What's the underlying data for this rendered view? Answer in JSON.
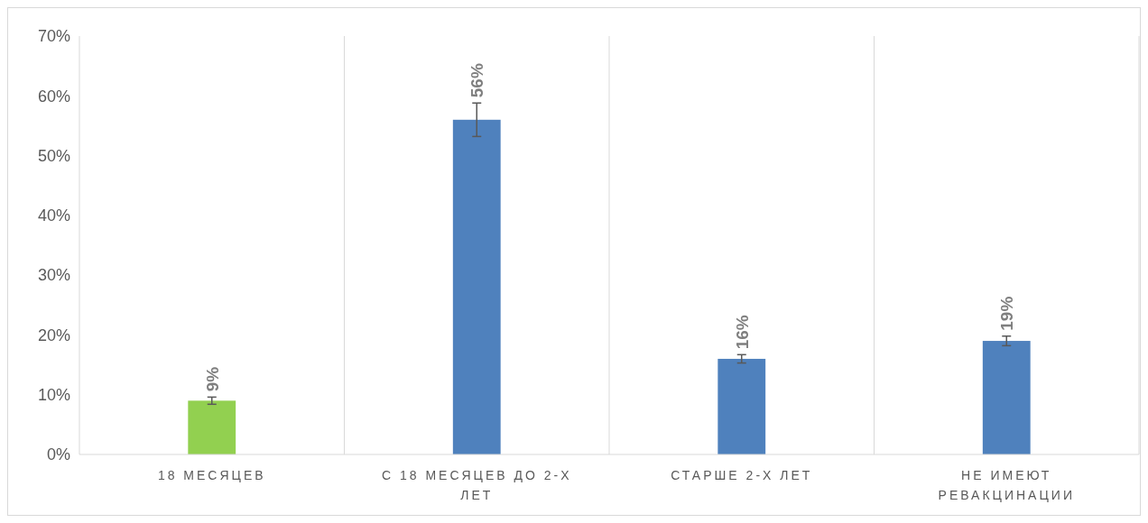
{
  "chart_data": {
    "type": "bar",
    "categories": [
      "18 МЕСЯЦЕВ",
      "С 18 МЕСЯЦЕВ ДО 2-Х ЛЕТ",
      "СТАРШЕ 2-Х ЛЕТ",
      "НЕ ИМЕЮТ РЕВАКЦИНАЦИИ"
    ],
    "values": [
      9,
      56,
      16,
      19
    ],
    "colors": [
      "#92d050",
      "#4f81bd",
      "#4f81bd",
      "#4f81bd"
    ],
    "errors": [
      0.6,
      2.8,
      0.7,
      0.8
    ],
    "ylim": [
      0,
      70
    ],
    "yticks": [
      {
        "value": 0,
        "label": "0%"
      },
      {
        "value": 10,
        "label": "10%"
      },
      {
        "value": 20,
        "label": "20%"
      },
      {
        "value": 30,
        "label": "30%"
      },
      {
        "value": 40,
        "label": "40%"
      },
      {
        "value": 50,
        "label": "50%"
      },
      {
        "value": 60,
        "label": "60%"
      },
      {
        "value": 70,
        "label": "70%"
      }
    ],
    "value_labels": [
      "9%",
      "56%",
      "16%",
      "19%"
    ],
    "grid": "x"
  }
}
